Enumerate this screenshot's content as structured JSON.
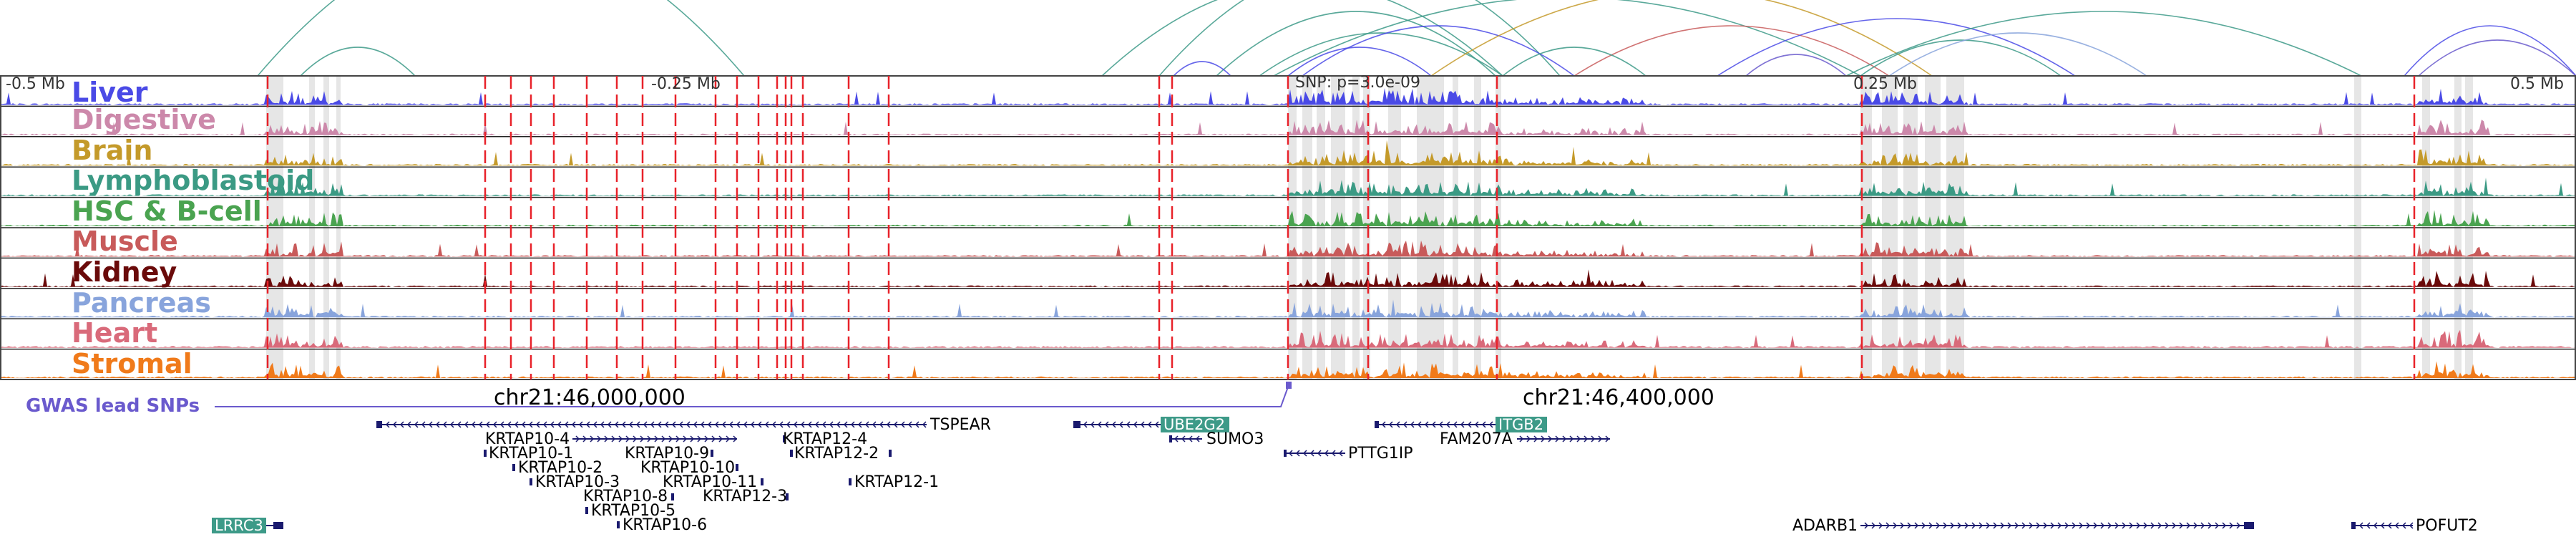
{
  "region": {
    "axis_labels": [
      "-0.5 Mb",
      "-0.25 Mb",
      "0.25 Mb",
      "0.5 Mb"
    ],
    "snp_label": "SNP: p=3.0e-09",
    "coordinates": [
      "chr21:46,000,000",
      "chr21:46,400,000"
    ],
    "gwas_label": "GWAS lead SNPs"
  },
  "tracks": [
    {
      "name": "Liver",
      "color": "#4a4ae6"
    },
    {
      "name": "Digestive",
      "color": "#cc88aa"
    },
    {
      "name": "Brain",
      "color": "#c49a2a"
    },
    {
      "name": "Lymphoblastoid",
      "color": "#3b9a84"
    },
    {
      "name": "HSC & B-cell",
      "color": "#4aa350"
    },
    {
      "name": "Muscle",
      "color": "#c85a5a"
    },
    {
      "name": "Kidney",
      "color": "#6a0a0a"
    },
    {
      "name": "Pancreas",
      "color": "#88a4dc"
    },
    {
      "name": "Heart",
      "color": "#d96a7a"
    },
    {
      "name": "Stromal",
      "color": "#f07a1a"
    }
  ],
  "genes": [
    {
      "name": "TSPEAR",
      "strand": "-",
      "highlight": false
    },
    {
      "name": "KRTAP10-4",
      "strand": "+",
      "highlight": false
    },
    {
      "name": "KRTAP10-1",
      "strand": "+",
      "highlight": false
    },
    {
      "name": "KRTAP10-2",
      "strand": "+",
      "highlight": false
    },
    {
      "name": "KRTAP10-3",
      "strand": "+",
      "highlight": false
    },
    {
      "name": "KRTAP10-8",
      "strand": "+",
      "highlight": false
    },
    {
      "name": "KRTAP10-5",
      "strand": "+",
      "highlight": false
    },
    {
      "name": "KRTAP10-6",
      "strand": "+",
      "highlight": false
    },
    {
      "name": "KRTAP10-9",
      "strand": "+",
      "highlight": false
    },
    {
      "name": "KRTAP10-10",
      "strand": "+",
      "highlight": false
    },
    {
      "name": "KRTAP10-11",
      "strand": "+",
      "highlight": false
    },
    {
      "name": "KRTAP12-3",
      "strand": "-",
      "highlight": false
    },
    {
      "name": "KRTAP12-4",
      "strand": "-",
      "highlight": false
    },
    {
      "name": "KRTAP12-2",
      "strand": "-",
      "highlight": false
    },
    {
      "name": "KRTAP12-1",
      "strand": "-",
      "highlight": false
    },
    {
      "name": "UBE2G2",
      "strand": "-",
      "highlight": true
    },
    {
      "name": "SUMO3",
      "strand": "-",
      "highlight": false
    },
    {
      "name": "PTTG1IP",
      "strand": "-",
      "highlight": false
    },
    {
      "name": "ITGB2",
      "strand": "-",
      "highlight": true
    },
    {
      "name": "FAM207A",
      "strand": "+",
      "highlight": false
    },
    {
      "name": "LRRC3",
      "strand": "+",
      "highlight": true
    },
    {
      "name": "ADARB1",
      "strand": "+",
      "highlight": false
    },
    {
      "name": "POFUT2",
      "strand": "-",
      "highlight": false
    }
  ],
  "colors": {
    "snp_line": "#e8222a",
    "gwas": "#6a5acd",
    "gene": "#1a1a6e",
    "highlight_gene_bg": "#3d9a88",
    "grey_band": "#e6e6e6"
  }
}
